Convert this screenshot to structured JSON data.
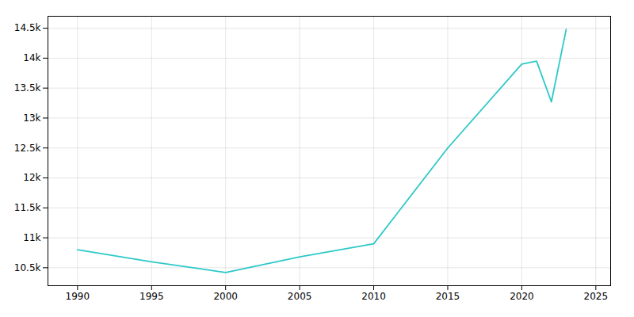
{
  "chart_data": {
    "type": "line",
    "x": [
      1990,
      1995,
      2000,
      2005,
      2010,
      2015,
      2020,
      2021,
      2022,
      2023
    ],
    "values": [
      10800,
      10600,
      10420,
      10680,
      10900,
      12500,
      13900,
      13950,
      13270,
      14480
    ],
    "color": "#2ec8c8",
    "xlim": [
      1988,
      2026
    ],
    "ylim": [
      10200,
      14700
    ],
    "xticks": [
      1990,
      1995,
      2000,
      2005,
      2010,
      2015,
      2020,
      2025
    ],
    "yticks": [
      {
        "value": 10500,
        "label": "10.5k"
      },
      {
        "value": 11000,
        "label": "11k"
      },
      {
        "value": 11500,
        "label": "11.5k"
      },
      {
        "value": 12000,
        "label": "12k"
      },
      {
        "value": 12500,
        "label": "12.5k"
      },
      {
        "value": 13000,
        "label": "13k"
      },
      {
        "value": 13500,
        "label": "13.5k"
      },
      {
        "value": 14000,
        "label": "14k"
      },
      {
        "value": 14500,
        "label": "14.5k"
      }
    ],
    "grid": true
  }
}
